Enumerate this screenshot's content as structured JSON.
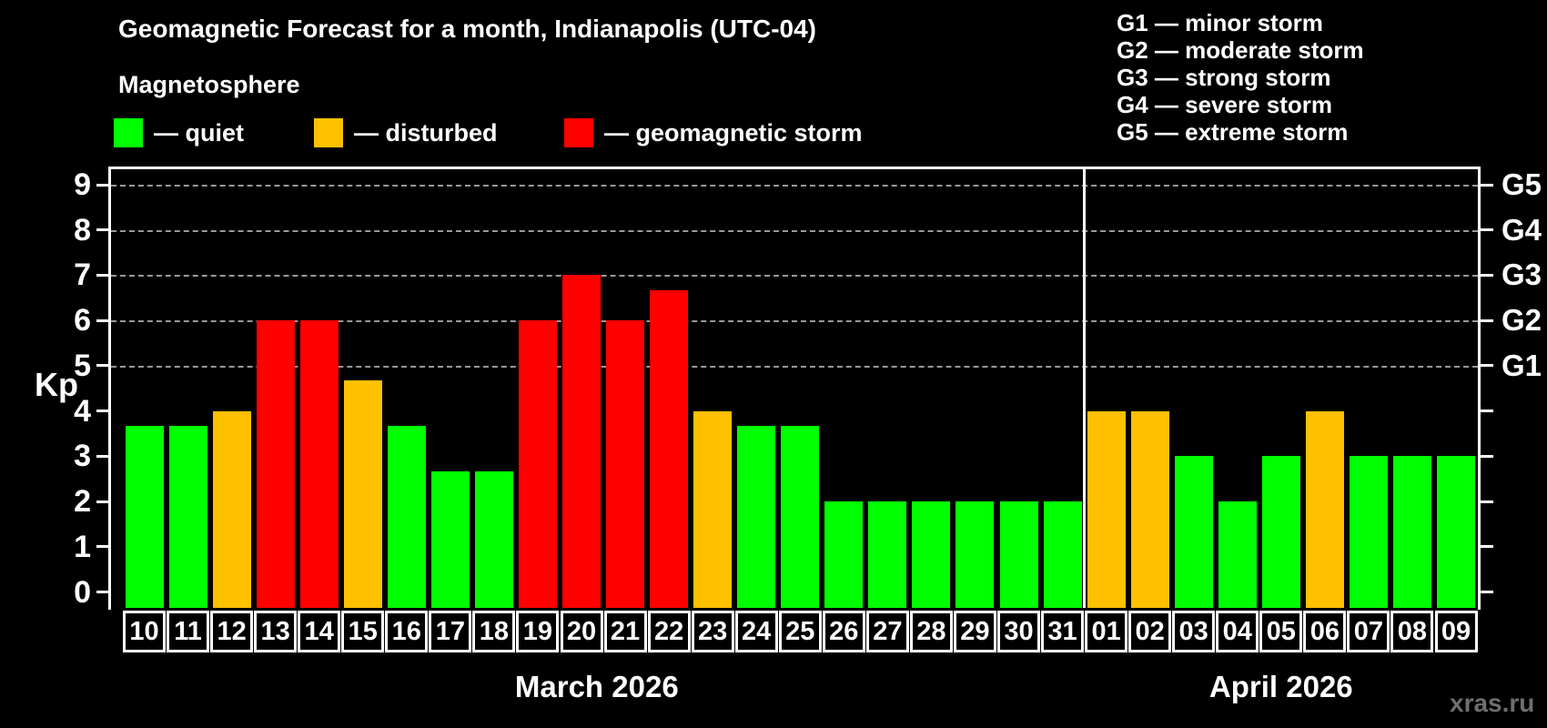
{
  "title": "Geomagnetic Forecast for a month, Indianapolis (UTC-04)",
  "subtitle": "Magnetosphere",
  "watermark": "xras.ru",
  "legend": [
    {
      "status": "quiet",
      "label": "— quiet",
      "color": "#00FF00"
    },
    {
      "status": "disturbed",
      "label": "— disturbed",
      "color": "#FFC000"
    },
    {
      "status": "storm",
      "label": "— geomagnetic storm",
      "color": "#FF0000"
    }
  ],
  "g_legend": [
    "G1 — minor storm",
    "G2 — moderate storm",
    "G3 — strong storm",
    "G4 — severe storm",
    "G5 — extreme storm"
  ],
  "axis": {
    "ylabel": "Kp",
    "yticks": [
      0,
      1,
      2,
      3,
      4,
      5,
      6,
      7,
      8,
      9
    ],
    "g_levels": [
      {
        "label": "G1",
        "kp": 5
      },
      {
        "label": "G2",
        "kp": 6
      },
      {
        "label": "G3",
        "kp": 7
      },
      {
        "label": "G4",
        "kp": 8
      },
      {
        "label": "G5",
        "kp": 9
      }
    ]
  },
  "months": [
    {
      "label": "March 2026",
      "days": 22
    },
    {
      "label": "April 2026",
      "days": 9
    }
  ],
  "chart_data": {
    "type": "bar",
    "title": "Geomagnetic Forecast for a month, Indianapolis (UTC-04)",
    "xlabel": "",
    "ylabel": "Kp",
    "ylim": [
      0,
      9
    ],
    "grid": "horizontal dashed lines at Kp 5,6,7,8,9 only",
    "legend_position": "top",
    "status_colors": {
      "quiet": "#00FF00",
      "disturbed": "#FFC000",
      "storm": "#FF0000"
    },
    "points": [
      {
        "day": "10",
        "month": "March 2026",
        "kp": 3.67,
        "status": "quiet"
      },
      {
        "day": "11",
        "month": "March 2026",
        "kp": 3.67,
        "status": "quiet"
      },
      {
        "day": "12",
        "month": "March 2026",
        "kp": 4.0,
        "status": "disturbed"
      },
      {
        "day": "13",
        "month": "March 2026",
        "kp": 6.0,
        "status": "storm"
      },
      {
        "day": "14",
        "month": "March 2026",
        "kp": 6.0,
        "status": "storm"
      },
      {
        "day": "15",
        "month": "March 2026",
        "kp": 4.67,
        "status": "disturbed"
      },
      {
        "day": "16",
        "month": "March 2026",
        "kp": 3.67,
        "status": "quiet"
      },
      {
        "day": "17",
        "month": "March 2026",
        "kp": 2.67,
        "status": "quiet"
      },
      {
        "day": "18",
        "month": "March 2026",
        "kp": 2.67,
        "status": "quiet"
      },
      {
        "day": "19",
        "month": "March 2026",
        "kp": 6.0,
        "status": "storm"
      },
      {
        "day": "20",
        "month": "March 2026",
        "kp": 7.0,
        "status": "storm"
      },
      {
        "day": "21",
        "month": "March 2026",
        "kp": 6.0,
        "status": "storm"
      },
      {
        "day": "22",
        "month": "March 2026",
        "kp": 6.67,
        "status": "storm"
      },
      {
        "day": "23",
        "month": "March 2026",
        "kp": 4.0,
        "status": "disturbed"
      },
      {
        "day": "24",
        "month": "March 2026",
        "kp": 3.67,
        "status": "quiet"
      },
      {
        "day": "25",
        "month": "March 2026",
        "kp": 3.67,
        "status": "quiet"
      },
      {
        "day": "26",
        "month": "March 2026",
        "kp": 2.0,
        "status": "quiet"
      },
      {
        "day": "27",
        "month": "March 2026",
        "kp": 2.0,
        "status": "quiet"
      },
      {
        "day": "28",
        "month": "March 2026",
        "kp": 2.0,
        "status": "quiet"
      },
      {
        "day": "29",
        "month": "March 2026",
        "kp": 2.0,
        "status": "quiet"
      },
      {
        "day": "30",
        "month": "March 2026",
        "kp": 2.0,
        "status": "quiet"
      },
      {
        "day": "31",
        "month": "March 2026",
        "kp": 2.0,
        "status": "quiet"
      },
      {
        "day": "01",
        "month": "April 2026",
        "kp": 4.0,
        "status": "disturbed"
      },
      {
        "day": "02",
        "month": "April 2026",
        "kp": 4.0,
        "status": "disturbed"
      },
      {
        "day": "03",
        "month": "April 2026",
        "kp": 3.0,
        "status": "quiet"
      },
      {
        "day": "04",
        "month": "April 2026",
        "kp": 2.0,
        "status": "quiet"
      },
      {
        "day": "05",
        "month": "April 2026",
        "kp": 3.0,
        "status": "quiet"
      },
      {
        "day": "06",
        "month": "April 2026",
        "kp": 4.0,
        "status": "disturbed"
      },
      {
        "day": "07",
        "month": "April 2026",
        "kp": 3.0,
        "status": "quiet"
      },
      {
        "day": "08",
        "month": "April 2026",
        "kp": 3.0,
        "status": "quiet"
      },
      {
        "day": "09",
        "month": "April 2026",
        "kp": 3.0,
        "status": "quiet"
      }
    ]
  }
}
